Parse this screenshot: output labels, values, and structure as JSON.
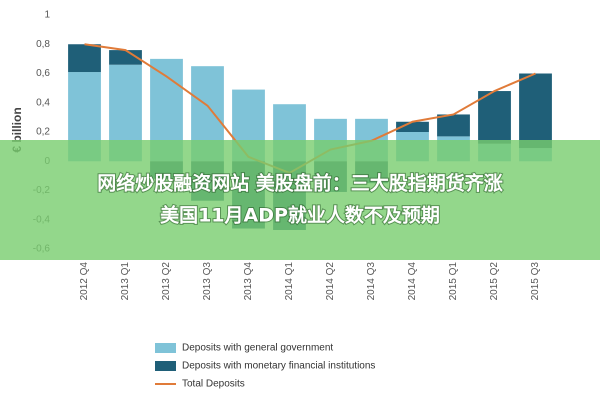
{
  "chart_data": {
    "type": "bar",
    "y_label": "€ billion",
    "categories": [
      "2012 Q4",
      "2013 Q1",
      "2013 Q2",
      "2013 Q3",
      "2013 Q4",
      "2014 Q1",
      "2014 Q2",
      "2014 Q3",
      "2014 Q4",
      "2015 Q1",
      "2015 Q2",
      "2015 Q3"
    ],
    "series": [
      {
        "name": "Deposits with general government",
        "color": "#7fc3d8",
        "values": [
          0.61,
          0.66,
          0.7,
          0.65,
          0.49,
          0.39,
          0.29,
          0.29,
          0.2,
          0.17,
          0.12,
          0.09
        ]
      },
      {
        "name": "Deposits with monetary financial institutions",
        "color": "#1f5f78",
        "values": [
          0.19,
          0.1,
          -0.12,
          -0.27,
          -0.46,
          -0.47,
          -0.21,
          -0.15,
          0.07,
          0.15,
          0.36,
          0.51
        ]
      },
      {
        "name": "Total Deposits",
        "color": "#e07b39",
        "type": "line",
        "values": [
          0.8,
          0.76,
          0.58,
          0.38,
          0.03,
          -0.08,
          0.08,
          0.14,
          0.27,
          0.32,
          0.48,
          0.6
        ]
      }
    ],
    "ylim": [
      -0.6,
      1
    ],
    "yticks": [
      {
        "value": -0.6,
        "label": "-0,6"
      },
      {
        "value": -0.4,
        "label": "-0,4"
      },
      {
        "value": -0.2,
        "label": "-0,2"
      },
      0,
      {
        "value": 0.2,
        "label": "0,2"
      },
      {
        "value": 0.4,
        "label": "0,4"
      },
      {
        "value": 0.6,
        "label": "0,6"
      },
      {
        "value": 0.8,
        "label": "0,8"
      },
      1
    ],
    "grid": false,
    "legend": "bottom"
  },
  "overlay": {
    "lines": [
      "网络炒股融资网站 美股盘前：三大股指期货齐涨",
      "美国11月ADP就业人数不及预期"
    ]
  }
}
